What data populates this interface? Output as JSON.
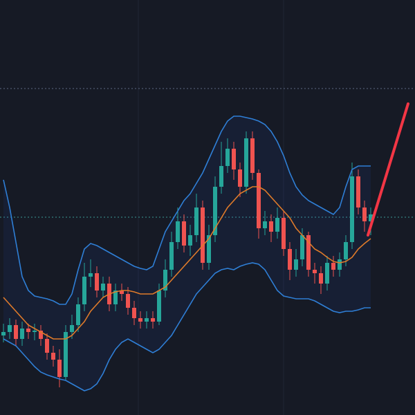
{
  "chart_data": {
    "type": "candlestick",
    "ylim": [
      0,
      600
    ],
    "up_color": "#26a69a",
    "down_color": "#ef5350",
    "background": "#161a25",
    "open": [
      115,
      120,
      130,
      110,
      125,
      120,
      122,
      110,
      90,
      80,
      55,
      120,
      130,
      160,
      200,
      205,
      180,
      190,
      160,
      180,
      175,
      155,
      140,
      135,
      140,
      135,
      180,
      210,
      250,
      280,
      245,
      260,
      300,
      220,
      260,
      330,
      360,
      385,
      355,
      330,
      400,
      350,
      270,
      280,
      265,
      285,
      240,
      210,
      225,
      260,
      210,
      205,
      190,
      220,
      210,
      225,
      250,
      345,
      300,
      280
    ],
    "high": [
      132,
      140,
      138,
      135,
      132,
      132,
      130,
      118,
      100,
      95,
      130,
      145,
      170,
      220,
      225,
      215,
      200,
      200,
      190,
      190,
      185,
      165,
      150,
      150,
      150,
      190,
      225,
      265,
      300,
      290,
      275,
      320,
      310,
      275,
      345,
      395,
      400,
      395,
      365,
      410,
      410,
      355,
      295,
      290,
      300,
      295,
      250,
      240,
      270,
      265,
      220,
      215,
      230,
      230,
      235,
      260,
      365,
      355,
      310,
      300
    ],
    "low": [
      105,
      110,
      100,
      100,
      110,
      108,
      100,
      80,
      70,
      40,
      50,
      110,
      120,
      150,
      185,
      170,
      170,
      150,
      150,
      165,
      145,
      130,
      125,
      125,
      125,
      130,
      170,
      200,
      240,
      235,
      230,
      250,
      210,
      210,
      250,
      320,
      350,
      340,
      315,
      320,
      340,
      255,
      260,
      250,
      255,
      230,
      195,
      200,
      215,
      200,
      190,
      175,
      180,
      200,
      200,
      215,
      240,
      290,
      265,
      260
    ],
    "close": [
      120,
      130,
      110,
      125,
      120,
      122,
      110,
      90,
      80,
      55,
      120,
      130,
      160,
      200,
      205,
      180,
      190,
      160,
      180,
      175,
      155,
      140,
      135,
      140,
      135,
      180,
      210,
      250,
      280,
      245,
      260,
      300,
      220,
      260,
      330,
      360,
      385,
      355,
      330,
      400,
      350,
      270,
      280,
      265,
      285,
      240,
      210,
      225,
      260,
      210,
      205,
      190,
      220,
      210,
      225,
      250,
      345,
      300,
      280,
      290
    ],
    "bands": [
      {
        "name": "upper",
        "color": "#2f7fd6",
        "values": [
          340,
          300,
          250,
          200,
          180,
          172,
          170,
          168,
          165,
          160,
          160,
          175,
          210,
          240,
          248,
          245,
          240,
          235,
          230,
          225,
          220,
          215,
          212,
          210,
          215,
          240,
          265,
          280,
          295,
          310,
          320,
          335,
          350,
          370,
          390,
          410,
          425,
          432,
          432,
          430,
          428,
          425,
          420,
          410,
          395,
          375,
          350,
          330,
          318,
          310,
          305,
          300,
          295,
          290,
          300,
          330,
          355,
          360,
          360,
          360
        ]
      },
      {
        "name": "basis",
        "color": "#e07b2a",
        "values": [
          170,
          160,
          150,
          140,
          130,
          125,
          120,
          115,
          110,
          110,
          110,
          115,
          125,
          135,
          150,
          160,
          170,
          175,
          178,
          180,
          180,
          178,
          175,
          175,
          175,
          180,
          185,
          195,
          205,
          215,
          225,
          235,
          245,
          255,
          270,
          285,
          300,
          310,
          320,
          325,
          330,
          330,
          325,
          315,
          305,
          295,
          285,
          270,
          260,
          250,
          240,
          235,
          228,
          222,
          220,
          222,
          228,
          240,
          248,
          255
        ]
      },
      {
        "name": "lower",
        "color": "#2f7fd6",
        "values": [
          110,
          105,
          100,
          90,
          80,
          70,
          62,
          58,
          55,
          52,
          50,
          45,
          40,
          35,
          38,
          45,
          60,
          80,
          95,
          105,
          110,
          105,
          100,
          95,
          90,
          95,
          105,
          115,
          130,
          145,
          160,
          175,
          185,
          195,
          205,
          210,
          212,
          210,
          215,
          218,
          220,
          218,
          210,
          195,
          180,
          172,
          170,
          168,
          168,
          168,
          165,
          160,
          155,
          150,
          148,
          150,
          150,
          152,
          155,
          155
        ]
      }
    ],
    "price_lines": [
      472,
      286
    ]
  }
}
